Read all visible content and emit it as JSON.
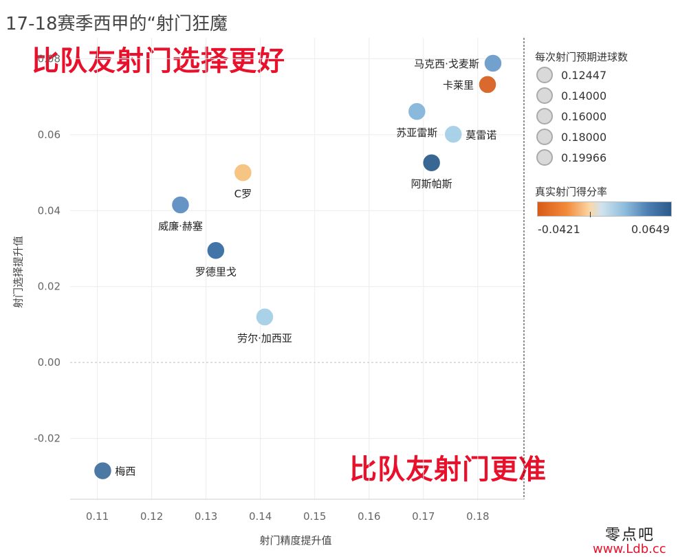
{
  "title": "17-18赛季西甲的“射门狂魔",
  "callouts": {
    "top": "比队友射门选择更好",
    "bottom": "比队友射门更准"
  },
  "legend_size": {
    "title": "每次射门预期进球数",
    "values": [
      "0.12447",
      "0.14000",
      "0.16000",
      "0.18000",
      "0.19966"
    ]
  },
  "legend_color": {
    "title": "真实射门得分率",
    "min": "-0.0421",
    "max": "0.0649"
  },
  "watermark": {
    "cn": "零点吧",
    "url": "www.Ldb.cc"
  },
  "chart_data": {
    "type": "scatter",
    "title": "17-18赛季西甲的“射门狂魔",
    "xlabel": "射门精度提升值",
    "ylabel": "射门选择提升值",
    "xlim": [
      0.105,
      0.1885
    ],
    "ylim": [
      -0.036,
      0.0855
    ],
    "xticks": [
      0.11,
      0.12,
      0.13,
      0.14,
      0.15,
      0.16,
      0.17,
      0.18
    ],
    "xtick_labels": [
      "0.11",
      "0.12",
      "0.13",
      "0.14",
      "0.15",
      "0.16",
      "0.17",
      "0.18"
    ],
    "yticks": [
      -0.02,
      0.0,
      0.02,
      0.04,
      0.06,
      0.08
    ],
    "ytick_labels": [
      "-0.02",
      "0.00",
      "0.02",
      "0.04",
      "0.06",
      "0.08"
    ],
    "points": [
      {
        "name": "马克西·戈麦斯",
        "x": 0.1828,
        "y": 0.0788,
        "color": "#6c9dcb",
        "label_pos": "left"
      },
      {
        "name": "卡莱里",
        "x": 0.1818,
        "y": 0.0732,
        "color": "#d86222",
        "label_pos": "left"
      },
      {
        "name": "苏亚雷斯",
        "x": 0.1688,
        "y": 0.0661,
        "color": "#84b6db",
        "label_pos": "below"
      },
      {
        "name": "莫雷诺",
        "x": 0.1755,
        "y": 0.0601,
        "color": "#a5cfe6",
        "label_pos": "right"
      },
      {
        "name": "阿斯帕斯",
        "x": 0.1715,
        "y": 0.0526,
        "color": "#2e5f8e",
        "label_pos": "below"
      },
      {
        "name": "C罗",
        "x": 0.1368,
        "y": 0.05,
        "color": "#f6c17d",
        "label_pos": "below"
      },
      {
        "name": "威廉·赫塞",
        "x": 0.1253,
        "y": 0.0415,
        "color": "#5d8fc2",
        "label_pos": "below"
      },
      {
        "name": "罗德里戈",
        "x": 0.1318,
        "y": 0.0295,
        "color": "#386ea3",
        "label_pos": "below"
      },
      {
        "name": "劳尔·加西亚",
        "x": 0.1408,
        "y": 0.012,
        "color": "#a5cfe6",
        "label_pos": "below"
      },
      {
        "name": "梅西",
        "x": 0.111,
        "y": -0.0285,
        "color": "#42729f",
        "label_pos": "right"
      }
    ]
  }
}
